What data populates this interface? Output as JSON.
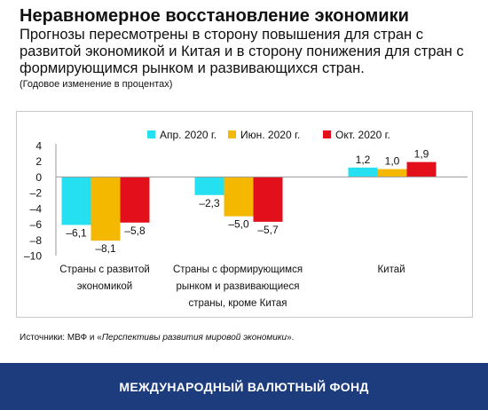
{
  "header": {
    "title": "Неравномерное восстановление экономики",
    "subtitle": "Прогнозы пересмотрены в сторону повышения для стран с развитой экономикой и Китая и в сторону понижения для стран с формирующимся рынком и развивающихся стран.",
    "unit": "(Годовое изменение в процентах)"
  },
  "source": {
    "prefix": "Источники: МВФ и «",
    "italic": "Перспективы развития мировой экономики",
    "suffix": "»."
  },
  "footer": {
    "text": "МЕЖДУНАРОДНЫЙ ВАЛЮТНЫЙ ФОНД"
  },
  "chart_data": {
    "type": "bar",
    "title": "Неравномерное восстановление экономики",
    "ylabel": "",
    "xlabel": "",
    "ylim": [
      -10,
      4
    ],
    "yticks": [
      4,
      2,
      0,
      -2,
      -4,
      -6,
      -8,
      -10
    ],
    "ytick_labels": [
      "4",
      "2",
      "0",
      "–2",
      "–4",
      "–6",
      "–8",
      "–10"
    ],
    "grid": false,
    "legend_position": "top",
    "categories": [
      "Страны с развитой экономикой",
      "Страны с формирующимся рынком и развивающиеся страны, кроме Китая",
      "Китай"
    ],
    "category_label_lines": [
      [
        "Страны с развитой",
        "экономикой"
      ],
      [
        "Страны с формирующимся",
        "рынком и развивающиеся",
        "страны, кроме Китая"
      ],
      [
        "Китай"
      ]
    ],
    "series": [
      {
        "name": "Апр. 2020 г.",
        "color": "#25e0f0",
        "values": [
          -6.1,
          -2.3,
          1.2
        ],
        "labels": [
          "–6,1",
          "–2,3",
          "1,2"
        ]
      },
      {
        "name": "Июн. 2020 г.",
        "color": "#f5b800",
        "values": [
          -8.1,
          -5.0,
          1.0
        ],
        "labels": [
          "–8,1",
          "–5,0",
          "1,0"
        ]
      },
      {
        "name": "Окт. 2020 г.",
        "color": "#e3101b",
        "values": [
          -5.8,
          -5.7,
          1.9
        ],
        "labels": [
          "–5,8",
          "–5,7",
          "1,9"
        ]
      }
    ]
  }
}
